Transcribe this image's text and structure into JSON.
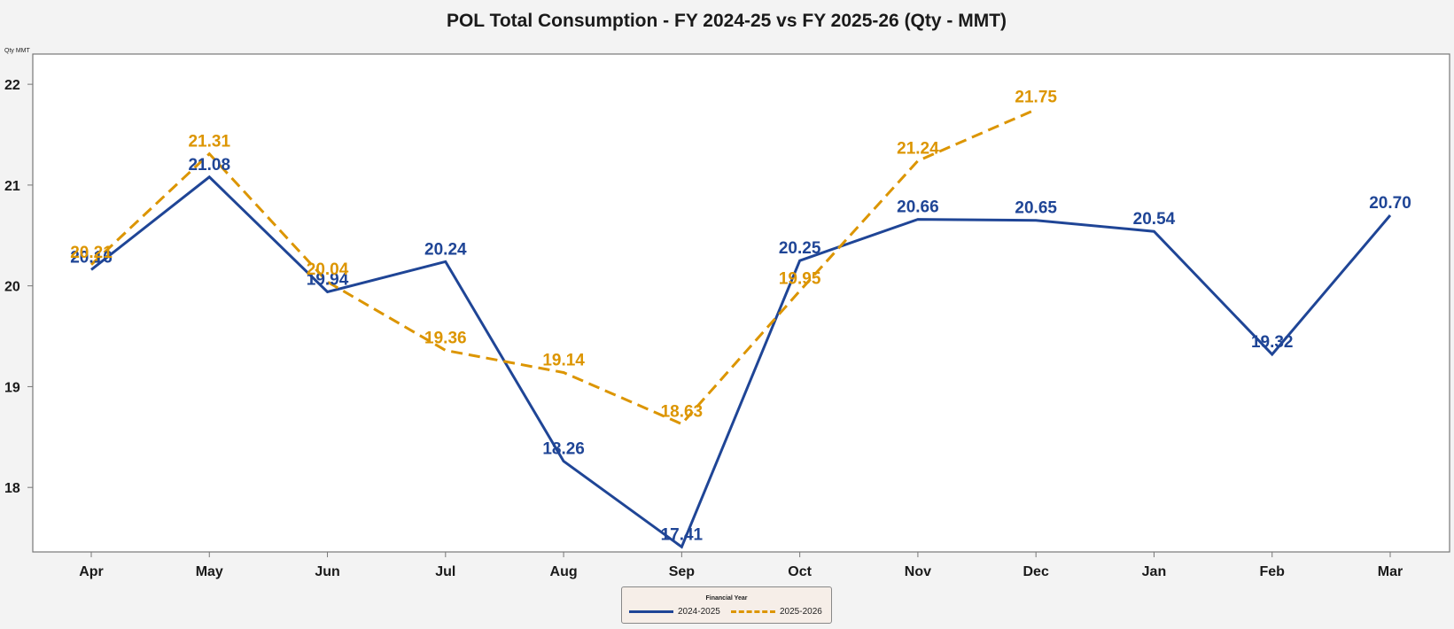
{
  "chart_data": {
    "type": "line",
    "title": "POL Total Consumption - FY 2024-25 vs FY 2025-26 (Qty - MMT)",
    "xlabel": "",
    "ylabel": "Qty MMT",
    "categories": [
      "Apr",
      "May",
      "Jun",
      "Jul",
      "Aug",
      "Sep",
      "Oct",
      "Nov",
      "Dec",
      "Jan",
      "Feb",
      "Mar"
    ],
    "ylim": [
      17.36,
      22.3
    ],
    "yticks": [
      18,
      19,
      20,
      21,
      22
    ],
    "grid": false,
    "legend": {
      "title": "Financial Year",
      "position": "bottom-center"
    },
    "series": [
      {
        "name": "2024-2025",
        "color": "#1f4596",
        "dash": "solid",
        "values": [
          20.16,
          21.08,
          19.94,
          20.24,
          18.26,
          17.41,
          20.25,
          20.66,
          20.65,
          20.54,
          19.32,
          20.7
        ],
        "labels": [
          "20.16",
          "21.08",
          "19.94",
          "20.24",
          "18.26",
          "17.41",
          "20.25",
          "20.66",
          "20.65",
          "20.54",
          "19.32",
          "20.70"
        ]
      },
      {
        "name": "2025-2026",
        "color": "#dc9500",
        "dash": "dashed",
        "values": [
          20.21,
          21.31,
          20.04,
          19.36,
          19.14,
          18.63,
          19.95,
          21.24,
          21.75,
          null,
          null,
          null
        ],
        "labels": [
          "20.21",
          "21.31",
          "20.04",
          "19.36",
          "19.14",
          "18.63",
          "19.95",
          "21.24",
          "21.75",
          null,
          null,
          null
        ]
      }
    ]
  }
}
